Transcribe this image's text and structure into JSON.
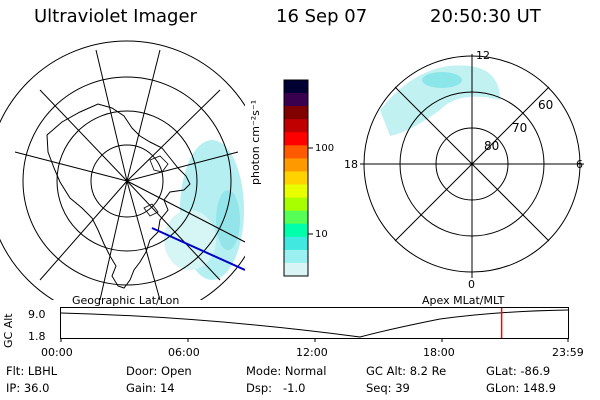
{
  "header": {
    "instrument": "Ultraviolet Imager",
    "date": "16 Sep 07",
    "time": "20:50:30 UT"
  },
  "left_map": {
    "caption": "Geographic Lat/Lon"
  },
  "colorbar": {
    "unit_label": "photon cm⁻²s⁻¹",
    "ticks": [
      {
        "value": 100,
        "label": "100"
      },
      {
        "value": 10,
        "label": "10"
      }
    ],
    "scale": "log",
    "colors": [
      "#000033",
      "#3a0050",
      "#800000",
      "#c00000",
      "#ff0000",
      "#ff5a00",
      "#ff9900",
      "#ffd200",
      "#e8ff00",
      "#a8ff00",
      "#55ff55",
      "#00ffaa",
      "#40e8e0",
      "#9af0f0",
      "#d8f4f4"
    ]
  },
  "right_map": {
    "caption": "Apex MLat/MLT",
    "mlt_labels": {
      "top": "12",
      "bottom": "0",
      "left": "18",
      "right": "6"
    },
    "mlat_labels": [
      "60",
      "70",
      "80"
    ]
  },
  "altitude_plot": {
    "ylabel": "GC Alt",
    "yticks": [
      "9.0",
      "1.8"
    ],
    "xticks": [
      "00:00",
      "06:00",
      "12:00",
      "18:00",
      "23:59"
    ],
    "current_time_hours": 20.84
  },
  "info": {
    "filter": "Flt: LBHL",
    "ip": "IP: 36.0",
    "door": "Door: Open",
    "gain": "Gain: 14",
    "mode": "Mode: Normal",
    "dsp": "Dsp:   -1.0",
    "gc_alt": "GC Alt: 8.2 Re",
    "seq": "Seq: 39",
    "glat": "GLat: -86.9",
    "glon": "GLon: 148.9"
  },
  "accent_colors": {
    "marker": "#ff0000",
    "trajectory": "#0000cc",
    "aurora": "#8ee8ec"
  }
}
